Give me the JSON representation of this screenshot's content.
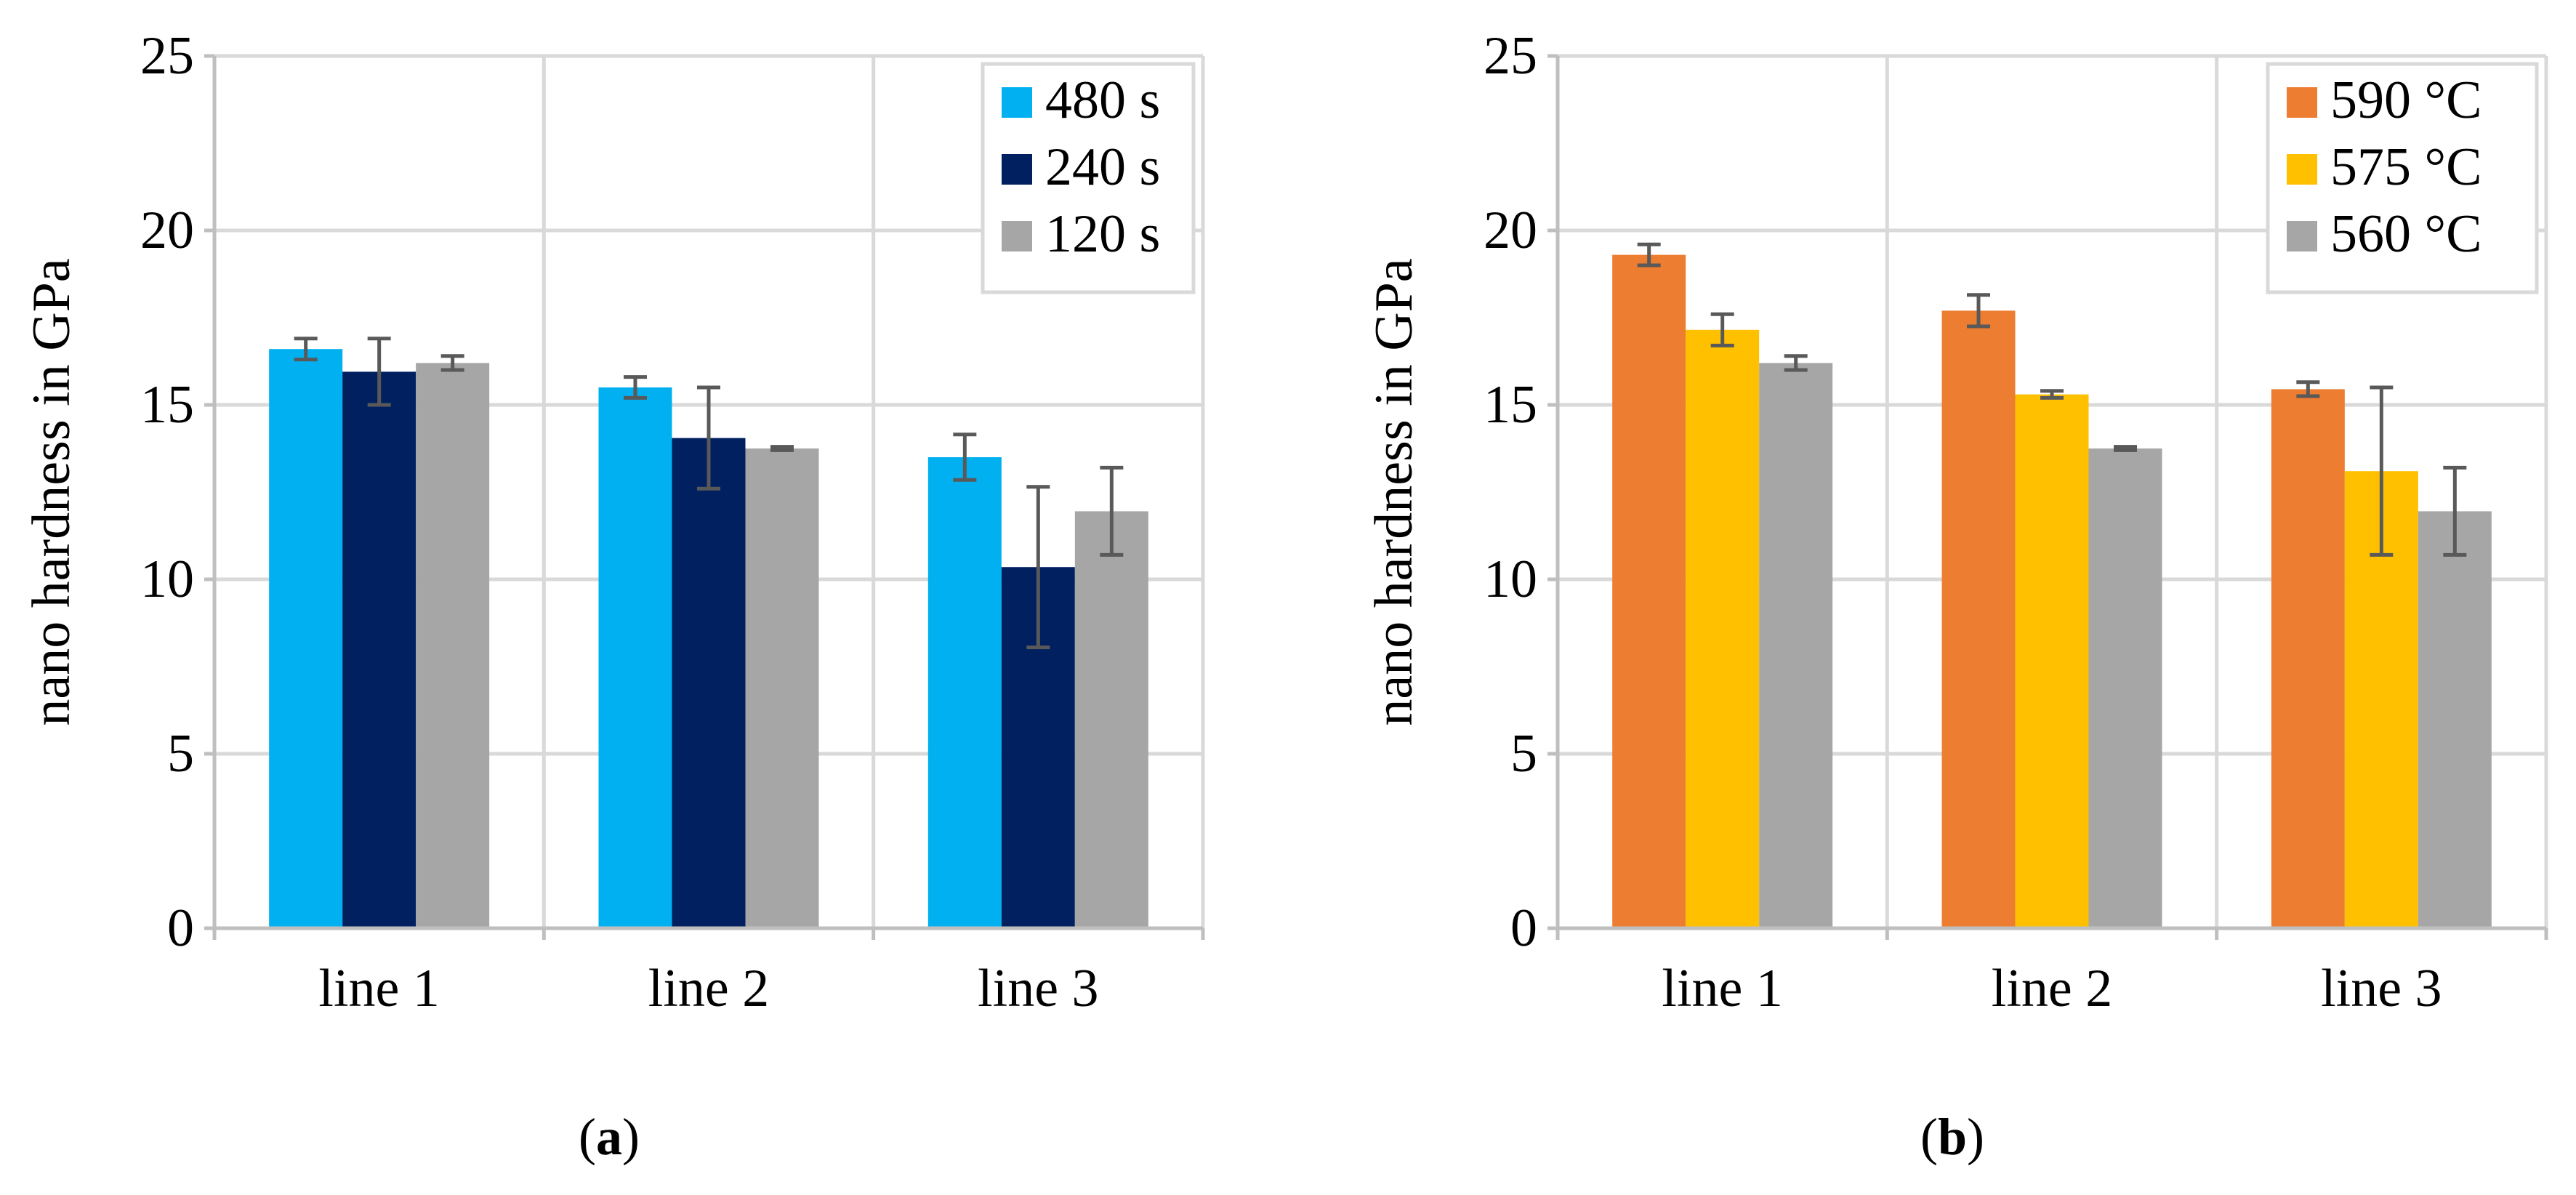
{
  "chart_data": [
    {
      "type": "bar",
      "title": "",
      "panel": "a",
      "xlabel": "",
      "ylabel": "nano hardness in GPa",
      "ylim": [
        0,
        25
      ],
      "yticks": [
        0,
        5,
        10,
        15,
        20,
        25
      ],
      "grid": true,
      "legend_position": "top-right",
      "categories": [
        "line 1",
        "line 2",
        "line 3"
      ],
      "series": [
        {
          "name": "480 s",
          "color": "#00b0f0",
          "values": [
            16.6,
            15.5,
            13.5
          ],
          "errors": [
            0.3,
            0.3,
            0.65
          ]
        },
        {
          "name": "240 s",
          "color": "#002060",
          "values": [
            15.95,
            14.05,
            10.35
          ],
          "errors": [
            0.95,
            1.45,
            2.3
          ]
        },
        {
          "name": "120 s",
          "color": "#a6a6a6",
          "values": [
            16.2,
            13.75,
            11.95
          ],
          "errors": [
            0.2,
            0.05,
            1.25
          ]
        }
      ]
    },
    {
      "type": "bar",
      "title": "",
      "panel": "b",
      "xlabel": "",
      "ylabel": "nano hardness in GPa",
      "ylim": [
        0,
        25
      ],
      "yticks": [
        0,
        5,
        10,
        15,
        20,
        25
      ],
      "grid": true,
      "legend_position": "top-right",
      "categories": [
        "line 1",
        "line 2",
        "line 3"
      ],
      "series": [
        {
          "name": "590 °C",
          "color": "#ed7d31",
          "values": [
            19.3,
            17.7,
            15.45
          ],
          "errors": [
            0.3,
            0.45,
            0.2
          ]
        },
        {
          "name": "575 °C",
          "color": "#ffc000",
          "values": [
            17.15,
            15.3,
            13.1
          ],
          "errors": [
            0.45,
            0.1,
            2.4
          ]
        },
        {
          "name": "560 °C",
          "color": "#a6a6a6",
          "values": [
            16.2,
            13.75,
            11.95
          ],
          "errors": [
            0.2,
            0.05,
            1.25
          ]
        }
      ]
    }
  ],
  "captions": {
    "a": {
      "open": "(",
      "letter": "a",
      "close": ")"
    },
    "b": {
      "open": "(",
      "letter": "b",
      "close": ")"
    }
  }
}
